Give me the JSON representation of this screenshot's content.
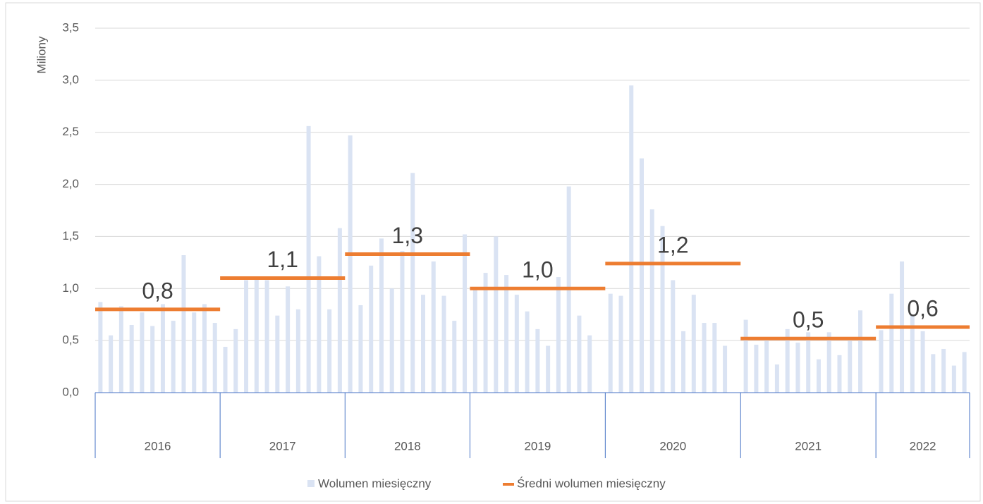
{
  "chart_data": {
    "type": "bar",
    "y_label": "Miliony",
    "categories": [
      null,
      null,
      null,
      null,
      null,
      null,
      null,
      null,
      null,
      null,
      null,
      null,
      null,
      null,
      null,
      null,
      null,
      null,
      null,
      null,
      null,
      null,
      null,
      null,
      null,
      null,
      null,
      null,
      null,
      null,
      null,
      null,
      null,
      null,
      null,
      null,
      null,
      null,
      null,
      null,
      null,
      null,
      null,
      null,
      null,
      null,
      null,
      null,
      null,
      null,
      null,
      null,
      null,
      null,
      null,
      null,
      null,
      null,
      null,
      null,
      null,
      null,
      null,
      null,
      null,
      null,
      null,
      null,
      null,
      null,
      null,
      null,
      null,
      null,
      null,
      null,
      null,
      null,
      null,
      null,
      null,
      null,
      null,
      null
    ],
    "groups": [
      {
        "name": "2016",
        "size": 12
      },
      {
        "name": "2017",
        "size": 12
      },
      {
        "name": "2018",
        "size": 12
      },
      {
        "name": "2019",
        "size": 13
      },
      {
        "name": "2020",
        "size": 13
      },
      {
        "name": "2021",
        "size": 13
      },
      {
        "name": "2022",
        "size": 9
      }
    ],
    "series": [
      {
        "name": "Wolumen miesięczny",
        "color": "#dae3f3",
        "values": [
          0.87,
          0.55,
          0.83,
          0.65,
          0.77,
          0.64,
          0.85,
          0.69,
          1.32,
          0.77,
          0.85,
          0.67,
          0.44,
          0.61,
          1.08,
          1.1,
          1.08,
          0.74,
          1.02,
          0.8,
          2.56,
          1.31,
          0.8,
          1.58,
          2.47,
          0.84,
          1.22,
          1.48,
          1.0,
          1.36,
          2.11,
          0.94,
          1.26,
          0.93,
          0.69,
          1.52,
          1.0,
          1.15,
          1.5,
          1.13,
          0.94,
          0.78,
          0.61,
          0.45,
          1.11,
          1.98,
          0.74,
          0.55,
          null,
          0.95,
          0.93,
          2.95,
          2.25,
          1.76,
          1.6,
          1.08,
          0.59,
          0.94,
          0.67,
          0.67,
          0.45,
          null,
          0.7,
          0.46,
          0.5,
          0.27,
          0.61,
          0.48,
          0.58,
          0.32,
          0.58,
          0.36,
          0.5,
          0.79,
          null,
          0.6,
          0.95,
          1.26,
          0.75,
          0.59,
          0.37,
          0.42,
          0.26,
          0.39
        ]
      }
    ],
    "average": {
      "name": "Średni wolumen miesięczny",
      "color": "#ed7d31",
      "values": [
        0.8,
        1.1,
        1.33,
        1.0,
        1.24,
        0.52,
        0.63
      ],
      "value_labels": [
        "0,8",
        "1,1",
        "1,3",
        "1,0",
        "1,2",
        "0,5",
        "0,6"
      ]
    },
    "ylim": [
      0,
      3.5
    ],
    "yticks": [
      {
        "value": 0,
        "label": "0,0"
      },
      {
        "value": 0.5,
        "label": "0,5"
      },
      {
        "value": 1,
        "label": "1,0"
      },
      {
        "value": 1.5,
        "label": "1,5"
      },
      {
        "value": 2,
        "label": "2,0"
      },
      {
        "value": 2.5,
        "label": "2,5"
      },
      {
        "value": 3,
        "label": "3,0"
      },
      {
        "value": 3.5,
        "label": "3,5"
      }
    ],
    "grid": true
  }
}
